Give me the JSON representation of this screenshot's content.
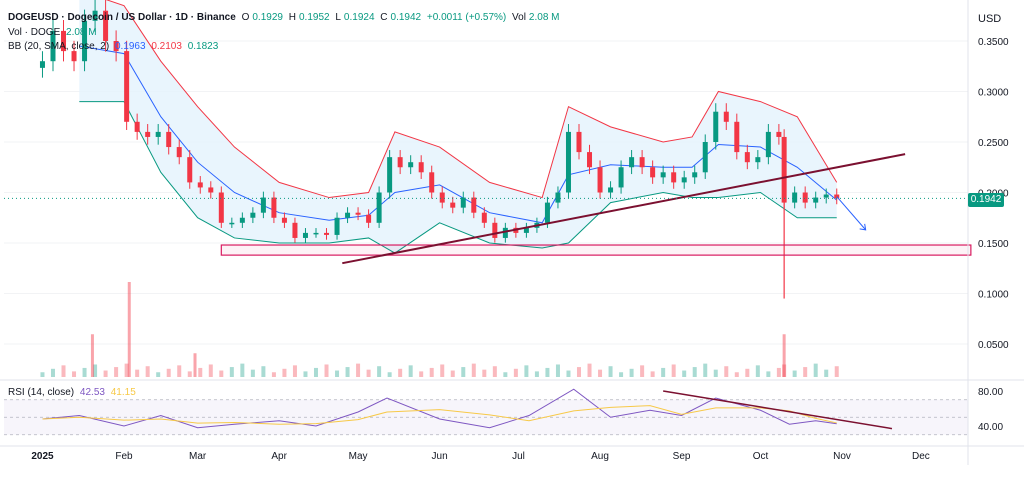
{
  "header": {
    "symbol": "DOGEUSD · Dogecoin / US Dollar · 1D · Binance",
    "open_label": "O",
    "open": "0.1929",
    "high_label": "H",
    "high": "0.1952",
    "low_label": "L",
    "low": "0.1924",
    "close_label": "C",
    "close": "0.1942",
    "change": "+0.0011 (+0.57%)",
    "vol_label": "Vol",
    "vol": "2.08 M",
    "vol_line_label": "Vol · DOGE",
    "vol_line_value": "2.08 M",
    "bb_label": "BB (20, SMA, close, 2)",
    "bb_basis": "0.1963",
    "bb_upper": "0.2103",
    "bb_lower": "0.1823",
    "rsi_label": "RSI (14, close)",
    "rsi_value": "42.53",
    "rsi_ma": "41.15"
  },
  "currency": "USD",
  "last_price": "0.1942",
  "colors": {
    "up": "#089981",
    "down": "#f23645",
    "bb_fill": "#e3f2fd",
    "bb_basis": "#2962ff",
    "trend": "#7b1030",
    "box": "#d81b60",
    "rsi": "#7e57c2",
    "rsi_ma": "#f7c948"
  },
  "chart_data": {
    "type": "candlestick",
    "price_axis": {
      "ticks": [
        0.05,
        0.1,
        0.15,
        0.2,
        0.25,
        0.3,
        0.35
      ],
      "tick_labels": [
        "0.0500",
        "0.1000",
        "0.1500",
        "0.2000",
        "0.2500",
        "0.3000",
        "0.3500"
      ]
    },
    "time_axis": {
      "labels": [
        "2025",
        "Feb",
        "Mar",
        "Apr",
        "May",
        "Jun",
        "Jul",
        "Aug",
        "Sep",
        "Oct",
        "Nov",
        "Dec"
      ]
    },
    "rsi_axis": {
      "ticks": [
        40,
        80
      ],
      "tick_labels": [
        "40.00",
        "80.00"
      ]
    },
    "close_series": [
      {
        "d": "2025-01-01",
        "v": 0.33
      },
      {
        "d": "2025-01-05",
        "v": 0.36
      },
      {
        "d": "2025-01-09",
        "v": 0.34
      },
      {
        "d": "2025-01-13",
        "v": 0.33
      },
      {
        "d": "2025-01-17",
        "v": 0.37
      },
      {
        "d": "2025-01-21",
        "v": 0.38
      },
      {
        "d": "2025-01-25",
        "v": 0.35
      },
      {
        "d": "2025-01-29",
        "v": 0.34
      },
      {
        "d": "2025-02-02",
        "v": 0.27
      },
      {
        "d": "2025-02-06",
        "v": 0.26
      },
      {
        "d": "2025-02-10",
        "v": 0.255
      },
      {
        "d": "2025-02-14",
        "v": 0.26
      },
      {
        "d": "2025-02-18",
        "v": 0.245
      },
      {
        "d": "2025-02-22",
        "v": 0.235
      },
      {
        "d": "2025-02-26",
        "v": 0.21
      },
      {
        "d": "2025-03-02",
        "v": 0.205
      },
      {
        "d": "2025-03-06",
        "v": 0.2
      },
      {
        "d": "2025-03-10",
        "v": 0.17
      },
      {
        "d": "2025-03-14",
        "v": 0.17
      },
      {
        "d": "2025-03-18",
        "v": 0.175
      },
      {
        "d": "2025-03-22",
        "v": 0.18
      },
      {
        "d": "2025-03-26",
        "v": 0.195
      },
      {
        "d": "2025-03-30",
        "v": 0.175
      },
      {
        "d": "2025-04-03",
        "v": 0.17
      },
      {
        "d": "2025-04-07",
        "v": 0.155
      },
      {
        "d": "2025-04-11",
        "v": 0.16
      },
      {
        "d": "2025-04-15",
        "v": 0.16
      },
      {
        "d": "2025-04-19",
        "v": 0.158
      },
      {
        "d": "2025-04-23",
        "v": 0.175
      },
      {
        "d": "2025-04-27",
        "v": 0.18
      },
      {
        "d": "2025-05-01",
        "v": 0.178
      },
      {
        "d": "2025-05-05",
        "v": 0.17
      },
      {
        "d": "2025-05-09",
        "v": 0.2
      },
      {
        "d": "2025-05-13",
        "v": 0.235
      },
      {
        "d": "2025-05-17",
        "v": 0.225
      },
      {
        "d": "2025-05-21",
        "v": 0.23
      },
      {
        "d": "2025-05-25",
        "v": 0.22
      },
      {
        "d": "2025-05-29",
        "v": 0.2
      },
      {
        "d": "2025-06-02",
        "v": 0.19
      },
      {
        "d": "2025-06-06",
        "v": 0.185
      },
      {
        "d": "2025-06-10",
        "v": 0.195
      },
      {
        "d": "2025-06-14",
        "v": 0.18
      },
      {
        "d": "2025-06-18",
        "v": 0.17
      },
      {
        "d": "2025-06-22",
        "v": 0.155
      },
      {
        "d": "2025-06-26",
        "v": 0.165
      },
      {
        "d": "2025-06-30",
        "v": 0.16
      },
      {
        "d": "2025-07-04",
        "v": 0.165
      },
      {
        "d": "2025-07-08",
        "v": 0.17
      },
      {
        "d": "2025-07-12",
        "v": 0.19
      },
      {
        "d": "2025-07-16",
        "v": 0.2
      },
      {
        "d": "2025-07-20",
        "v": 0.26
      },
      {
        "d": "2025-07-24",
        "v": 0.24
      },
      {
        "d": "2025-07-28",
        "v": 0.225
      },
      {
        "d": "2025-08-01",
        "v": 0.2
      },
      {
        "d": "2025-08-05",
        "v": 0.205
      },
      {
        "d": "2025-08-09",
        "v": 0.225
      },
      {
        "d": "2025-08-13",
        "v": 0.235
      },
      {
        "d": "2025-08-17",
        "v": 0.225
      },
      {
        "d": "2025-08-21",
        "v": 0.215
      },
      {
        "d": "2025-08-25",
        "v": 0.22
      },
      {
        "d": "2025-08-29",
        "v": 0.21
      },
      {
        "d": "2025-09-02",
        "v": 0.215
      },
      {
        "d": "2025-09-06",
        "v": 0.22
      },
      {
        "d": "2025-09-10",
        "v": 0.25
      },
      {
        "d": "2025-09-14",
        "v": 0.28
      },
      {
        "d": "2025-09-18",
        "v": 0.27
      },
      {
        "d": "2025-09-22",
        "v": 0.24
      },
      {
        "d": "2025-09-26",
        "v": 0.23
      },
      {
        "d": "2025-09-30",
        "v": 0.235
      },
      {
        "d": "2025-10-04",
        "v": 0.26
      },
      {
        "d": "2025-10-08",
        "v": 0.255
      },
      {
        "d": "2025-10-10",
        "v": 0.19
      },
      {
        "d": "2025-10-14",
        "v": 0.2
      },
      {
        "d": "2025-10-18",
        "v": 0.19
      },
      {
        "d": "2025-10-22",
        "v": 0.195
      },
      {
        "d": "2025-10-26",
        "v": 0.198
      },
      {
        "d": "2025-10-30",
        "v": 0.1942
      }
    ],
    "bb_upper_series": [
      {
        "d": "2025-01-15",
        "v": 0.4
      },
      {
        "d": "2025-02-01",
        "v": 0.385
      },
      {
        "d": "2025-02-15",
        "v": 0.33
      },
      {
        "d": "2025-03-01",
        "v": 0.285
      },
      {
        "d": "2025-03-15",
        "v": 0.245
      },
      {
        "d": "2025-04-01",
        "v": 0.21
      },
      {
        "d": "2025-04-20",
        "v": 0.195
      },
      {
        "d": "2025-05-05",
        "v": 0.2
      },
      {
        "d": "2025-05-15",
        "v": 0.26
      },
      {
        "d": "2025-06-01",
        "v": 0.245
      },
      {
        "d": "2025-06-20",
        "v": 0.21
      },
      {
        "d": "2025-07-10",
        "v": 0.195
      },
      {
        "d": "2025-07-20",
        "v": 0.285
      },
      {
        "d": "2025-08-05",
        "v": 0.265
      },
      {
        "d": "2025-08-25",
        "v": 0.25
      },
      {
        "d": "2025-09-05",
        "v": 0.255
      },
      {
        "d": "2025-09-15",
        "v": 0.3
      },
      {
        "d": "2025-10-01",
        "v": 0.29
      },
      {
        "d": "2025-10-15",
        "v": 0.275
      },
      {
        "d": "2025-10-30",
        "v": 0.21
      }
    ],
    "bb_lower_series": [
      {
        "d": "2025-01-15",
        "v": 0.29
      },
      {
        "d": "2025-02-01",
        "v": 0.29
      },
      {
        "d": "2025-02-15",
        "v": 0.22
      },
      {
        "d": "2025-03-01",
        "v": 0.175
      },
      {
        "d": "2025-03-15",
        "v": 0.155
      },
      {
        "d": "2025-04-01",
        "v": 0.15
      },
      {
        "d": "2025-04-20",
        "v": 0.15
      },
      {
        "d": "2025-05-05",
        "v": 0.155
      },
      {
        "d": "2025-05-15",
        "v": 0.14
      },
      {
        "d": "2025-06-01",
        "v": 0.17
      },
      {
        "d": "2025-06-20",
        "v": 0.15
      },
      {
        "d": "2025-07-10",
        "v": 0.145
      },
      {
        "d": "2025-07-20",
        "v": 0.15
      },
      {
        "d": "2025-08-05",
        "v": 0.19
      },
      {
        "d": "2025-08-25",
        "v": 0.2
      },
      {
        "d": "2025-09-05",
        "v": 0.195
      },
      {
        "d": "2025-09-15",
        "v": 0.195
      },
      {
        "d": "2025-10-01",
        "v": 0.2
      },
      {
        "d": "2025-10-15",
        "v": 0.175
      },
      {
        "d": "2025-10-30",
        "v": 0.175
      }
    ],
    "support_zone": {
      "from": "2025-03-10",
      "to": "2025-12-20",
      "low": 0.138,
      "high": 0.148
    },
    "trendline": {
      "from": {
        "d": "2025-04-25",
        "v": 0.13
      },
      "to": {
        "d": "2025-11-25",
        "v": 0.238
      }
    },
    "projection_arrow": {
      "from": {
        "d": "2025-10-30",
        "v": 0.196
      },
      "to": {
        "d": "2025-11-10",
        "v": 0.163
      }
    },
    "rsi_series": [
      {
        "d": "2025-01-01",
        "v": 48
      },
      {
        "d": "2025-01-15",
        "v": 52
      },
      {
        "d": "2025-02-01",
        "v": 40
      },
      {
        "d": "2025-02-15",
        "v": 52
      },
      {
        "d": "2025-03-01",
        "v": 38
      },
      {
        "d": "2025-03-15",
        "v": 42
      },
      {
        "d": "2025-04-01",
        "v": 46
      },
      {
        "d": "2025-04-15",
        "v": 40
      },
      {
        "d": "2025-05-01",
        "v": 56
      },
      {
        "d": "2025-05-12",
        "v": 72
      },
      {
        "d": "2025-06-01",
        "v": 48
      },
      {
        "d": "2025-06-20",
        "v": 38
      },
      {
        "d": "2025-07-05",
        "v": 52
      },
      {
        "d": "2025-07-22",
        "v": 82
      },
      {
        "d": "2025-08-05",
        "v": 50
      },
      {
        "d": "2025-08-20",
        "v": 58
      },
      {
        "d": "2025-09-01",
        "v": 52
      },
      {
        "d": "2025-09-14",
        "v": 72
      },
      {
        "d": "2025-10-01",
        "v": 58
      },
      {
        "d": "2025-10-12",
        "v": 42
      },
      {
        "d": "2025-10-22",
        "v": 46
      },
      {
        "d": "2025-10-30",
        "v": 42.53
      }
    ],
    "rsi_trendline": {
      "from": {
        "d": "2025-08-25",
        "v": 80
      },
      "to": {
        "d": "2025-11-20",
        "v": 37
      }
    },
    "volume_spikes": [
      {
        "d": "2025-01-20",
        "v": 0.45
      },
      {
        "d": "2025-02-03",
        "v": 1.0
      },
      {
        "d": "2025-02-28",
        "v": 0.25
      },
      {
        "d": "2025-10-10",
        "v": 0.45
      }
    ]
  }
}
